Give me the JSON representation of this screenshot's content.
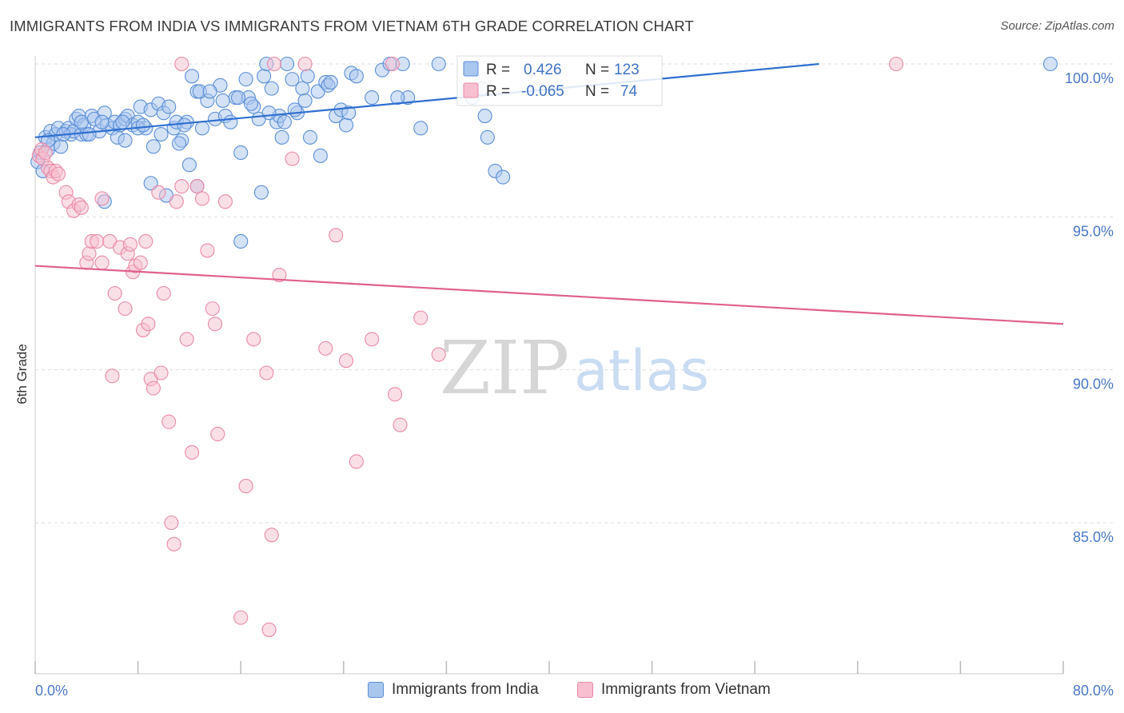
{
  "title": "IMMIGRANTS FROM INDIA VS IMMIGRANTS FROM VIETNAM 6TH GRADE CORRELATION CHART",
  "source": "Source: ZipAtlas.com",
  "watermark": {
    "zip": "ZIP",
    "atlas": "atlas"
  },
  "colors": {
    "india_fill": "#a9c6ef",
    "india_stroke": "#5b8fd6",
    "india_line": "#2f6fd0",
    "vietnam_fill": "#f7bfd0",
    "vietnam_stroke": "#e98aa8",
    "vietnam_line": "#e0608e",
    "tick_text": "#4a78c8",
    "grid": "#dddddd"
  },
  "legend_stats": {
    "r_label": "R =",
    "n_label": "N =",
    "india": {
      "r": "0.426",
      "n": "123"
    },
    "vietnam": {
      "r": "-0.065",
      "n": "74"
    }
  },
  "bottom_legend": {
    "india": "Immigrants from India",
    "vietnam": "Immigrants from Vietnam"
  },
  "chart_data": {
    "type": "scatter",
    "title": "IMMIGRANTS FROM INDIA VS IMMIGRANTS FROM VIETNAM 6TH GRADE CORRELATION CHART",
    "xlabel": "",
    "ylabel": "6th Grade",
    "xlim": [
      0,
      80
    ],
    "ylim": [
      80.8,
      100.5
    ],
    "x_tick_labels": [
      "0.0%",
      "80.0%"
    ],
    "y_ticks": [
      85,
      90,
      95,
      100
    ],
    "y_tick_labels": [
      "85.0%",
      "90.0%",
      "95.0%",
      "100.0%"
    ],
    "grid": true,
    "series": [
      {
        "name": "Immigrants from India",
        "r": 0.426,
        "n": 123,
        "trend": {
          "x": [
            0,
            61
          ],
          "y": [
            97.6,
            100.0
          ]
        },
        "points": [
          [
            0.2,
            96.8
          ],
          [
            0.4,
            97.1
          ],
          [
            0.6,
            96.5
          ],
          [
            0.8,
            97.6
          ],
          [
            1.0,
            97.2
          ],
          [
            1.2,
            97.8
          ],
          [
            1.4,
            97.4
          ],
          [
            1.6,
            97.7
          ],
          [
            1.8,
            97.9
          ],
          [
            2.0,
            97.3
          ],
          [
            2.4,
            97.8
          ],
          [
            2.6,
            97.9
          ],
          [
            2.8,
            97.7
          ],
          [
            3.0,
            97.8
          ],
          [
            3.2,
            98.2
          ],
          [
            3.4,
            98.3
          ],
          [
            3.6,
            97.7
          ],
          [
            3.8,
            98.0
          ],
          [
            4.0,
            97.7
          ],
          [
            4.4,
            98.3
          ],
          [
            4.6,
            98.2
          ],
          [
            5.0,
            97.8
          ],
          [
            5.4,
            98.4
          ],
          [
            5.6,
            98.0
          ],
          [
            6.0,
            97.9
          ],
          [
            6.2,
            98.1
          ],
          [
            6.4,
            97.6
          ],
          [
            6.6,
            98.0
          ],
          [
            7.0,
            98.2
          ],
          [
            7.2,
            98.3
          ],
          [
            7.6,
            98.0
          ],
          [
            8.0,
            98.1
          ],
          [
            8.2,
            98.6
          ],
          [
            8.6,
            97.9
          ],
          [
            9.0,
            98.5
          ],
          [
            9.2,
            97.3
          ],
          [
            9.6,
            98.7
          ],
          [
            10.0,
            98.4
          ],
          [
            10.4,
            98.6
          ],
          [
            10.8,
            97.9
          ],
          [
            11.0,
            98.1
          ],
          [
            11.4,
            97.5
          ],
          [
            11.8,
            98.1
          ],
          [
            12.2,
            99.6
          ],
          [
            12.6,
            99.1
          ],
          [
            13.0,
            97.9
          ],
          [
            13.4,
            98.8
          ],
          [
            14.0,
            98.2
          ],
          [
            14.4,
            99.3
          ],
          [
            14.8,
            98.3
          ],
          [
            15.2,
            98.1
          ],
          [
            15.6,
            98.9
          ],
          [
            16.0,
            97.1
          ],
          [
            16.4,
            99.5
          ],
          [
            16.6,
            98.9
          ],
          [
            17.0,
            98.6
          ],
          [
            17.4,
            98.2
          ],
          [
            17.6,
            95.8
          ],
          [
            17.8,
            99.6
          ],
          [
            18.0,
            100.0
          ],
          [
            18.4,
            99.2
          ],
          [
            18.8,
            98.1
          ],
          [
            19.0,
            98.3
          ],
          [
            19.2,
            97.6
          ],
          [
            19.6,
            100.0
          ],
          [
            20.0,
            99.5
          ],
          [
            20.4,
            98.4
          ],
          [
            20.8,
            99.2
          ],
          [
            21.0,
            98.8
          ],
          [
            21.4,
            97.6
          ],
          [
            22.0,
            99.1
          ],
          [
            22.6,
            99.4
          ],
          [
            22.8,
            99.3
          ],
          [
            23.4,
            98.3
          ],
          [
            23.8,
            98.5
          ],
          [
            24.2,
            98.0
          ],
          [
            24.6,
            99.7
          ],
          [
            25.0,
            99.6
          ],
          [
            27.0,
            99.8
          ],
          [
            27.6,
            100.0
          ],
          [
            28.6,
            100.0
          ],
          [
            29.0,
            98.9
          ],
          [
            30.0,
            97.9
          ],
          [
            31.4,
            100.0
          ],
          [
            34.0,
            98.9
          ],
          [
            34.8,
            99.2
          ],
          [
            35.0,
            98.3
          ],
          [
            35.2,
            97.6
          ],
          [
            35.8,
            96.5
          ],
          [
            36.4,
            96.3
          ],
          [
            16.0,
            94.2
          ],
          [
            12.0,
            96.7
          ],
          [
            10.2,
            95.7
          ],
          [
            9.0,
            96.1
          ],
          [
            5.4,
            95.5
          ],
          [
            7.0,
            97.5
          ],
          [
            11.2,
            97.4
          ],
          [
            12.6,
            96.0
          ],
          [
            8.0,
            97.9
          ],
          [
            22.2,
            97.0
          ],
          [
            1.0,
            97.5
          ],
          [
            2.2,
            97.7
          ],
          [
            3.6,
            98.1
          ],
          [
            4.2,
            97.7
          ],
          [
            5.2,
            98.1
          ],
          [
            6.8,
            98.1
          ],
          [
            8.4,
            98.0
          ],
          [
            9.8,
            97.7
          ],
          [
            11.6,
            98.0
          ],
          [
            12.8,
            99.1
          ],
          [
            13.6,
            99.1
          ],
          [
            14.6,
            98.8
          ],
          [
            15.8,
            98.9
          ],
          [
            16.8,
            98.7
          ],
          [
            18.2,
            98.4
          ],
          [
            19.4,
            98.1
          ],
          [
            20.2,
            98.5
          ],
          [
            21.2,
            99.6
          ],
          [
            23.0,
            99.4
          ],
          [
            24.4,
            98.4
          ],
          [
            26.2,
            98.9
          ],
          [
            28.2,
            98.9
          ],
          [
            79.0,
            100.0
          ]
        ]
      },
      {
        "name": "Immigrants from Vietnam",
        "r": -0.065,
        "n": 74,
        "trend": {
          "x": [
            0,
            80
          ],
          "y": [
            93.4,
            91.5
          ]
        },
        "points": [
          [
            0.3,
            97.0
          ],
          [
            0.5,
            97.2
          ],
          [
            0.6,
            96.9
          ],
          [
            0.8,
            97.1
          ],
          [
            1.0,
            96.6
          ],
          [
            1.2,
            96.5
          ],
          [
            1.4,
            96.3
          ],
          [
            1.6,
            96.5
          ],
          [
            1.8,
            96.4
          ],
          [
            2.4,
            95.8
          ],
          [
            2.6,
            95.5
          ],
          [
            3.0,
            95.2
          ],
          [
            3.4,
            95.4
          ],
          [
            3.6,
            95.3
          ],
          [
            4.0,
            93.5
          ],
          [
            4.2,
            93.8
          ],
          [
            4.4,
            94.2
          ],
          [
            4.8,
            94.2
          ],
          [
            5.2,
            95.6
          ],
          [
            5.8,
            94.2
          ],
          [
            6.2,
            92.5
          ],
          [
            6.6,
            94.0
          ],
          [
            7.0,
            92.0
          ],
          [
            7.2,
            93.8
          ],
          [
            7.4,
            94.1
          ],
          [
            7.6,
            93.2
          ],
          [
            7.8,
            93.4
          ],
          [
            8.2,
            93.5
          ],
          [
            8.4,
            91.3
          ],
          [
            8.6,
            94.2
          ],
          [
            8.8,
            91.5
          ],
          [
            9.0,
            89.7
          ],
          [
            9.2,
            89.4
          ],
          [
            9.6,
            95.8
          ],
          [
            9.8,
            89.9
          ],
          [
            10.0,
            92.5
          ],
          [
            10.4,
            88.3
          ],
          [
            10.6,
            85.0
          ],
          [
            10.8,
            84.3
          ],
          [
            11.0,
            95.5
          ],
          [
            11.4,
            96.0
          ],
          [
            11.8,
            91.0
          ],
          [
            12.2,
            87.3
          ],
          [
            12.6,
            96.0
          ],
          [
            13.0,
            95.6
          ],
          [
            13.4,
            93.9
          ],
          [
            13.8,
            92.0
          ],
          [
            14.0,
            91.5
          ],
          [
            14.2,
            87.9
          ],
          [
            14.8,
            95.5
          ],
          [
            16.0,
            81.9
          ],
          [
            16.4,
            86.2
          ],
          [
            17.0,
            91.0
          ],
          [
            18.0,
            89.9
          ],
          [
            18.2,
            81.5
          ],
          [
            18.4,
            84.6
          ],
          [
            19.0,
            93.1
          ],
          [
            20.0,
            96.9
          ],
          [
            22.6,
            90.7
          ],
          [
            23.4,
            94.4
          ],
          [
            24.2,
            90.3
          ],
          [
            25.0,
            87.0
          ],
          [
            26.2,
            91.0
          ],
          [
            28.0,
            89.2
          ],
          [
            28.4,
            88.2
          ],
          [
            30.0,
            91.7
          ],
          [
            31.4,
            90.5
          ],
          [
            6.0,
            89.8
          ],
          [
            5.2,
            93.5
          ],
          [
            21.0,
            100.0
          ],
          [
            18.6,
            100.0
          ],
          [
            67.0,
            100.0
          ],
          [
            11.4,
            100.0
          ],
          [
            27.8,
            100.0
          ]
        ]
      }
    ]
  }
}
